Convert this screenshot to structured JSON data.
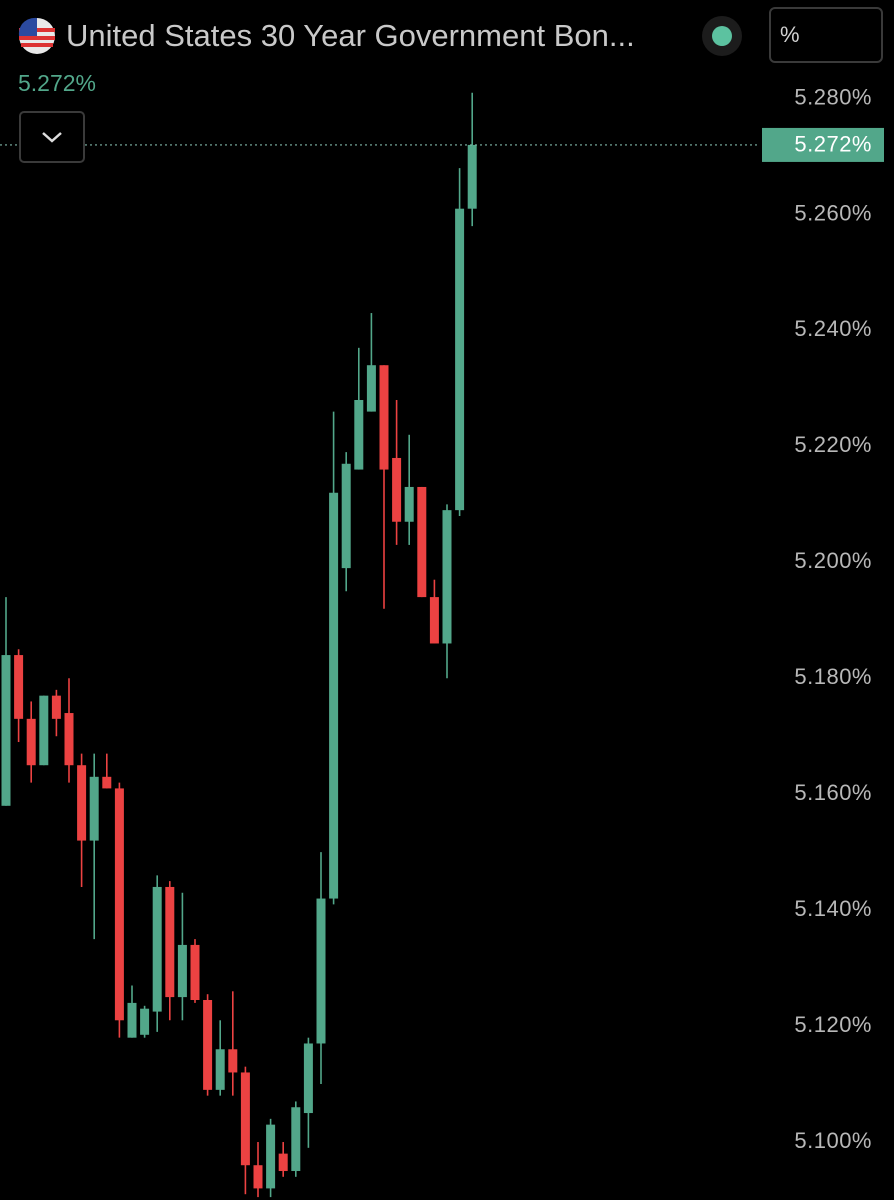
{
  "chart_data": {
    "type": "candlestick",
    "title": "United States 30 Year Government Bon...",
    "unit": "%",
    "last_value": {
      "value": 5.272,
      "label": "5.272%"
    },
    "up_color": "#52a78a",
    "down_color": "#ec4242",
    "ylim": [
      5.09,
      5.297
    ],
    "yticks": [
      {
        "value": 5.28,
        "label": "5.280%"
      },
      {
        "value": 5.26,
        "label": "5.260%"
      },
      {
        "value": 5.24,
        "label": "5.240%"
      },
      {
        "value": 5.22,
        "label": "5.220%"
      },
      {
        "value": 5.2,
        "label": "5.200%"
      },
      {
        "value": 5.18,
        "label": "5.180%"
      },
      {
        "value": 5.16,
        "label": "5.160%"
      },
      {
        "value": 5.14,
        "label": "5.140%"
      },
      {
        "value": 5.12,
        "label": "5.120%"
      },
      {
        "value": 5.1,
        "label": "5.100%"
      }
    ],
    "open": [
      5.158,
      5.184,
      5.173,
      5.165,
      5.177,
      5.174,
      5.165,
      5.152,
      5.163,
      5.161,
      5.118,
      5.1185,
      5.1225,
      5.144,
      5.125,
      5.134,
      5.1245,
      5.109,
      5.116,
      5.112,
      5.096,
      5.092,
      5.098,
      5.095,
      5.105,
      5.117,
      5.142,
      5.199,
      5.216,
      5.226,
      5.234,
      5.218,
      5.207,
      5.213,
      5.194,
      5.186,
      5.209,
      5.261
    ],
    "high": [
      5.194,
      5.185,
      5.176,
      5.177,
      5.178,
      5.18,
      5.167,
      5.167,
      5.167,
      5.162,
      5.127,
      5.1235,
      5.146,
      5.145,
      5.143,
      5.135,
      5.1255,
      5.121,
      5.126,
      5.113,
      5.1,
      5.104,
      5.1,
      5.107,
      5.118,
      5.15,
      5.226,
      5.219,
      5.237,
      5.243,
      5.234,
      5.228,
      5.222,
      5.213,
      5.197,
      5.21,
      5.268,
      5.281
    ],
    "low": [
      5.158,
      5.169,
      5.162,
      5.165,
      5.17,
      5.162,
      5.144,
      5.135,
      5.161,
      5.118,
      5.118,
      5.118,
      5.119,
      5.121,
      5.121,
      5.124,
      5.108,
      5.108,
      5.108,
      5.091,
      5.0905,
      5.0905,
      5.094,
      5.094,
      5.099,
      5.11,
      5.141,
      5.195,
      5.216,
      5.226,
      5.192,
      5.203,
      5.203,
      5.194,
      5.186,
      5.18,
      5.208,
      5.258
    ],
    "close": [
      5.184,
      5.173,
      5.165,
      5.177,
      5.173,
      5.165,
      5.152,
      5.163,
      5.161,
      5.121,
      5.124,
      5.123,
      5.144,
      5.125,
      5.134,
      5.1245,
      5.109,
      5.116,
      5.112,
      5.096,
      5.092,
      5.103,
      5.095,
      5.106,
      5.117,
      5.142,
      5.212,
      5.217,
      5.228,
      5.234,
      5.216,
      5.207,
      5.213,
      5.194,
      5.186,
      5.209,
      5.261,
      5.272
    ]
  }
}
